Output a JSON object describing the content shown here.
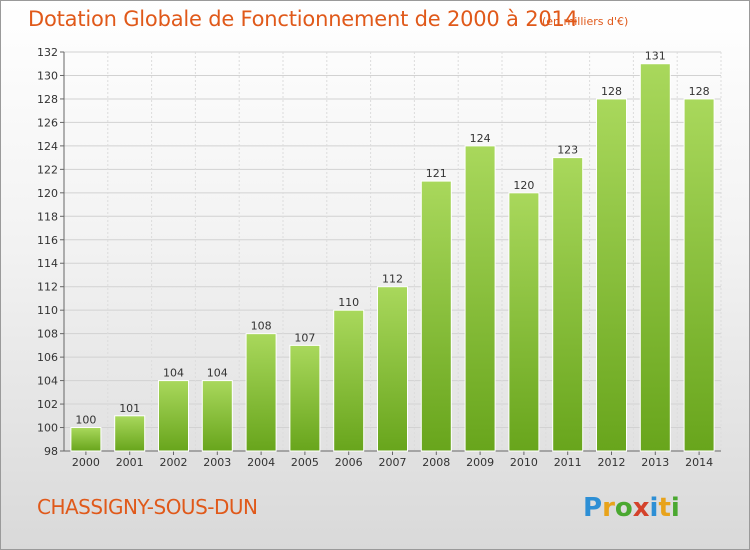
{
  "header": {
    "title": "Dotation Globale de Fonctionnement de 2000 à 2014",
    "unit": "(en milliers d'€)"
  },
  "footer": {
    "commune": "CHASSIGNY-SOUS-DUN",
    "logo_text": "Proxiti"
  },
  "colors": {
    "title": "#e0591a",
    "bar_light": "#a7d65a",
    "bar_dark": "#6ba81e",
    "bar_edge": "#ffffff"
  },
  "chart_data": {
    "type": "bar",
    "title": "Dotation Globale de Fonctionnement de 2000 à 2014",
    "subtitle": "(en milliers d'€)",
    "categories": [
      "2000",
      "2001",
      "2002",
      "2003",
      "2004",
      "2005",
      "2006",
      "2007",
      "2008",
      "2009",
      "2010",
      "2011",
      "2012",
      "2013",
      "2014"
    ],
    "values": [
      100,
      101,
      104,
      104,
      108,
      107,
      110,
      112,
      121,
      124,
      120,
      123,
      128,
      131,
      128
    ],
    "ylim": [
      98,
      132
    ],
    "yticks": [
      98,
      100,
      102,
      104,
      106,
      108,
      110,
      112,
      114,
      116,
      118,
      120,
      122,
      124,
      126,
      128,
      130,
      132
    ],
    "grid": true,
    "xlabel": "",
    "ylabel": ""
  }
}
